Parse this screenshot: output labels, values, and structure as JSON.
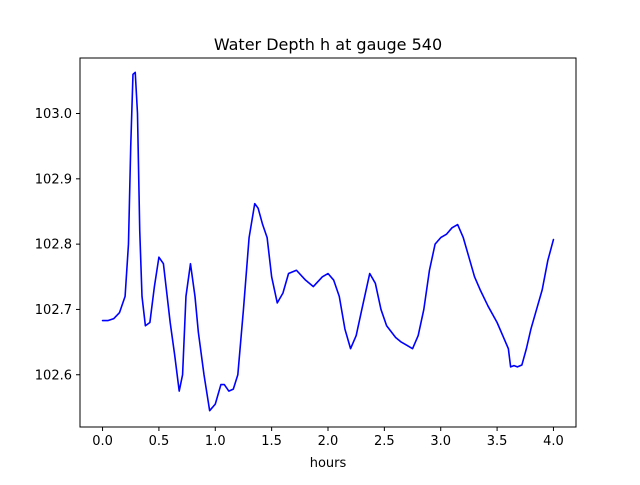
{
  "chart_data": {
    "type": "line",
    "title": "Water Depth h at gauge 540",
    "xlabel": "hours",
    "ylabel": "",
    "xlim": [
      -0.2,
      4.2
    ],
    "ylim": [
      102.52,
      103.085
    ],
    "xticks": [
      "0.0",
      "0.5",
      "1.0",
      "1.5",
      "2.0",
      "2.5",
      "3.0",
      "3.5",
      "4.0"
    ],
    "xtick_values": [
      0,
      0.5,
      1.0,
      1.5,
      2.0,
      2.5,
      3.0,
      3.5,
      4.0
    ],
    "yticks": [
      "102.6",
      "102.7",
      "102.8",
      "102.9",
      "103.0"
    ],
    "ytick_values": [
      102.6,
      102.7,
      102.8,
      102.9,
      103.0
    ],
    "grid": false,
    "line_color": "#0000ff",
    "series": [
      {
        "x": [
          0.0,
          0.05,
          0.1,
          0.15,
          0.2,
          0.23,
          0.25,
          0.27,
          0.29,
          0.31,
          0.33,
          0.35,
          0.38,
          0.42,
          0.46,
          0.5,
          0.54,
          0.56,
          0.6,
          0.64,
          0.68,
          0.71,
          0.74,
          0.78,
          0.82,
          0.85,
          0.9,
          0.95,
          1.0,
          1.05,
          1.08,
          1.12,
          1.16,
          1.2,
          1.25,
          1.3,
          1.35,
          1.38,
          1.42,
          1.46,
          1.5,
          1.55,
          1.6,
          1.65,
          1.72,
          1.8,
          1.87,
          1.95,
          2.0,
          2.05,
          2.1,
          2.15,
          2.2,
          2.25,
          2.3,
          2.37,
          2.42,
          2.47,
          2.52,
          2.6,
          2.65,
          2.7,
          2.75,
          2.8,
          2.85,
          2.9,
          2.95,
          3.0,
          3.05,
          3.1,
          3.15,
          3.2,
          3.25,
          3.3,
          3.35,
          3.42,
          3.5,
          3.55,
          3.6,
          3.62,
          3.65,
          3.68,
          3.72,
          3.76,
          3.8,
          3.85,
          3.9,
          3.95,
          4.0
        ],
        "y": [
          102.683,
          102.683,
          102.686,
          102.695,
          102.72,
          102.8,
          102.95,
          103.06,
          103.063,
          103.0,
          102.82,
          102.72,
          102.675,
          102.68,
          102.735,
          102.78,
          102.77,
          102.74,
          102.68,
          102.63,
          102.575,
          102.6,
          102.72,
          102.77,
          102.72,
          102.665,
          102.6,
          102.545,
          102.555,
          102.585,
          102.585,
          102.575,
          102.578,
          102.6,
          102.7,
          102.81,
          102.862,
          102.855,
          102.83,
          102.81,
          102.75,
          102.71,
          102.725,
          102.755,
          102.76,
          102.745,
          102.735,
          102.75,
          102.755,
          102.745,
          102.72,
          102.67,
          102.64,
          102.66,
          102.7,
          102.755,
          102.74,
          102.7,
          102.675,
          102.657,
          102.65,
          102.645,
          102.64,
          102.66,
          102.7,
          102.76,
          102.8,
          102.81,
          102.815,
          102.825,
          102.83,
          102.81,
          102.78,
          102.75,
          102.73,
          102.705,
          102.68,
          102.66,
          102.64,
          102.612,
          102.614,
          102.612,
          102.615,
          102.64,
          102.67,
          102.7,
          102.73,
          102.775,
          102.807
        ]
      }
    ]
  }
}
